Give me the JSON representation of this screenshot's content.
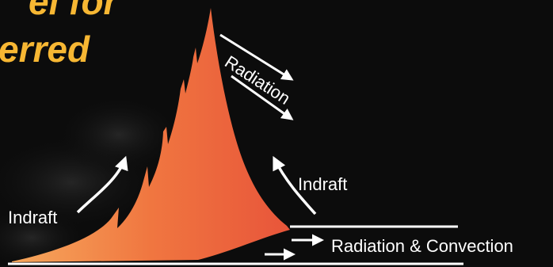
{
  "title": {
    "line1": "el for",
    "line2": "erred"
  },
  "labels": {
    "radiation": "Radiation",
    "indraft_left": "Indraft",
    "indraft_right": "Indraft",
    "radiation_convection": "Radiation & Convection"
  },
  "colors": {
    "background": "#0c0c0c",
    "title": "#f7b733",
    "flame_top": "#e85d3a",
    "flame_base": "#f7a35a",
    "arrows": "#ffffff"
  }
}
